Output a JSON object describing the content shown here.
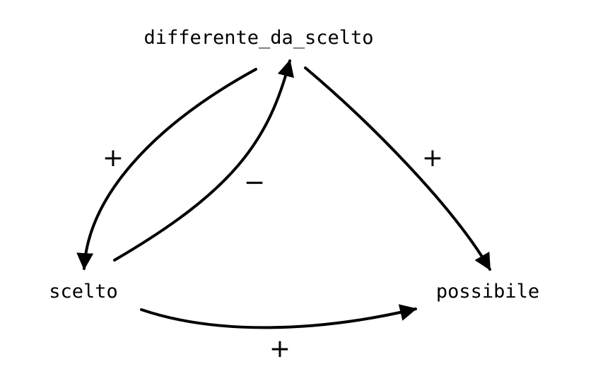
{
  "nodes": {
    "top": {
      "label": "differente_da_scelto"
    },
    "left": {
      "label": "scelto"
    },
    "right": {
      "label": "possibile"
    }
  },
  "edges": [
    {
      "from": "differente_da_scelto",
      "to": "scelto",
      "sign": "+"
    },
    {
      "from": "scelto",
      "to": "differente_da_scelto",
      "sign": "−"
    },
    {
      "from": "differente_da_scelto",
      "to": "possibile",
      "sign": "+"
    },
    {
      "from": "scelto",
      "to": "possibile",
      "sign": "+"
    }
  ],
  "colors": {
    "stroke": "#000000",
    "background": "#ffffff"
  }
}
